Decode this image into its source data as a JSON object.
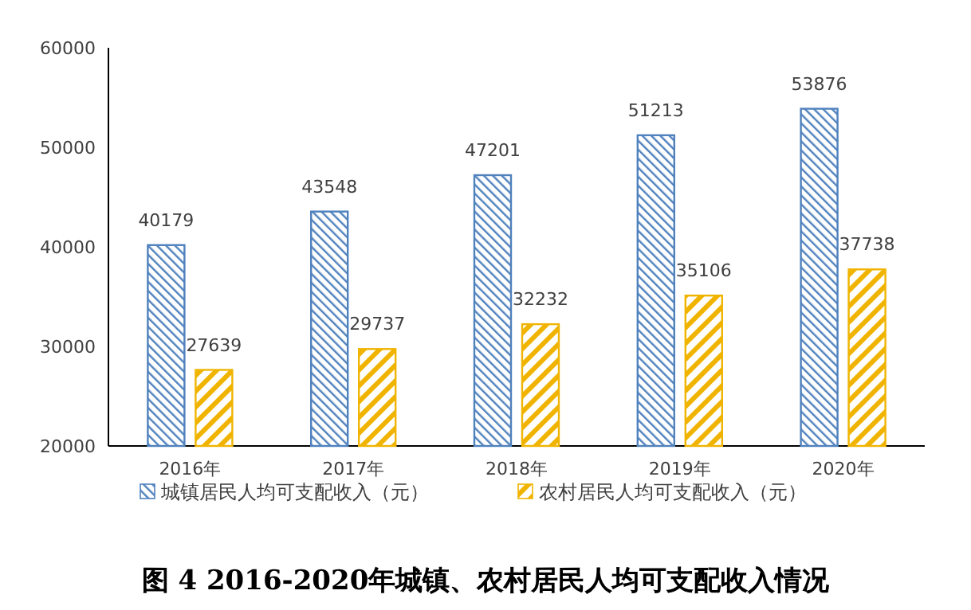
{
  "chart_data": {
    "type": "bar",
    "title": "图 4 2016-2020年城镇、农村居民人均可支配收入情况",
    "categories": [
      "2016年",
      "2017年",
      "2018年",
      "2019年",
      "2020年"
    ],
    "series": [
      {
        "name": "城镇居民人均可支配收入（元）",
        "color": "#4f81bd",
        "values": [
          40179,
          43548,
          47201,
          51213,
          53876
        ]
      },
      {
        "name": "农村居民人均可支配收入（元）",
        "color": "#f0b400",
        "values": [
          27639,
          29737,
          32232,
          35106,
          37738
        ]
      }
    ],
    "ylim": [
      20000,
      60000
    ],
    "yticks": [
      20000,
      30000,
      40000,
      50000,
      60000
    ],
    "data_labels": true,
    "legend": "bottom",
    "grid": false
  }
}
